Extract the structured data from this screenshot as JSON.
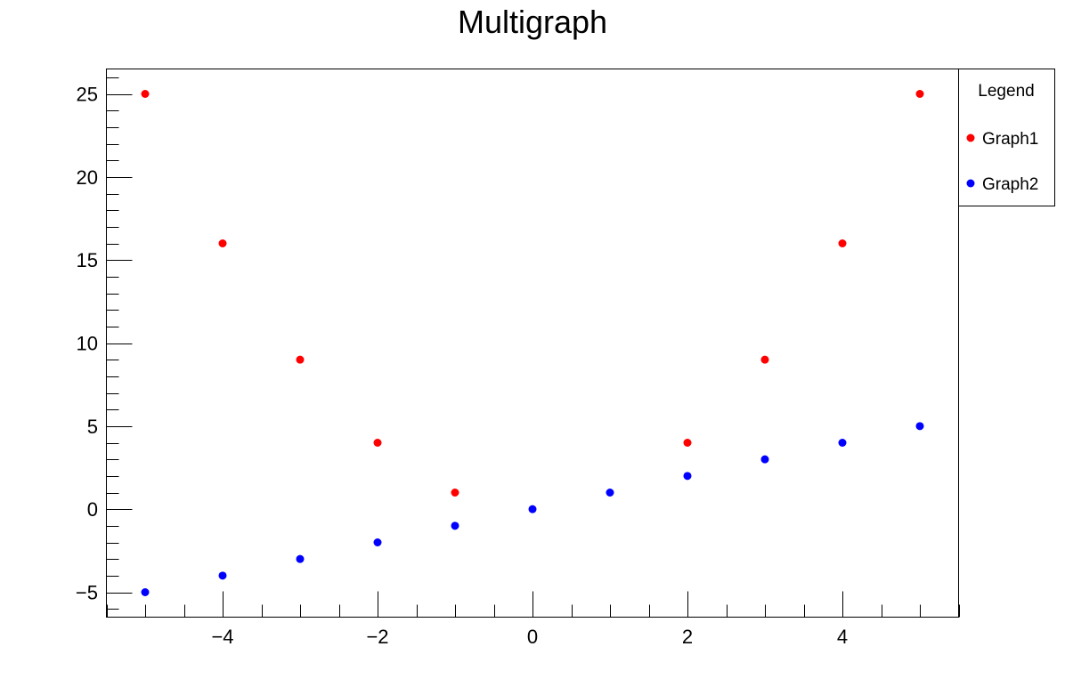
{
  "chart_data": {
    "type": "scatter",
    "title": "Multigraph",
    "xlabel": "",
    "ylabel": "",
    "xlim": [
      -5.5,
      5.5
    ],
    "ylim": [
      -6.5,
      26.5
    ],
    "x_ticks": [
      -4,
      -2,
      0,
      2,
      4
    ],
    "x_tick_labels": [
      "−4",
      "−2",
      "0",
      "2",
      "4"
    ],
    "y_ticks": [
      -5,
      0,
      5,
      10,
      15,
      20,
      25
    ],
    "y_tick_labels": [
      "−5",
      "0",
      "5",
      "10",
      "15",
      "20",
      "25"
    ],
    "grid": false,
    "legend": {
      "title": "Legend",
      "placement": "top-right, outside plot",
      "entries": [
        "Graph1",
        "Graph2"
      ]
    },
    "series": [
      {
        "name": "Graph1",
        "color": "#ff0000",
        "x": [
          -5,
          -4,
          -3,
          -2,
          -1,
          2,
          3,
          4,
          5
        ],
        "y": [
          25,
          16,
          9,
          4,
          1,
          4,
          9,
          16,
          25
        ]
      },
      {
        "name": "Graph2",
        "color": "#0000ff",
        "x": [
          -5,
          -4,
          -3,
          -2,
          -1,
          0,
          1,
          2,
          3,
          4,
          5
        ],
        "y": [
          -5,
          -4,
          -3,
          -2,
          -1,
          0,
          1,
          2,
          3,
          4,
          5
        ]
      }
    ]
  }
}
